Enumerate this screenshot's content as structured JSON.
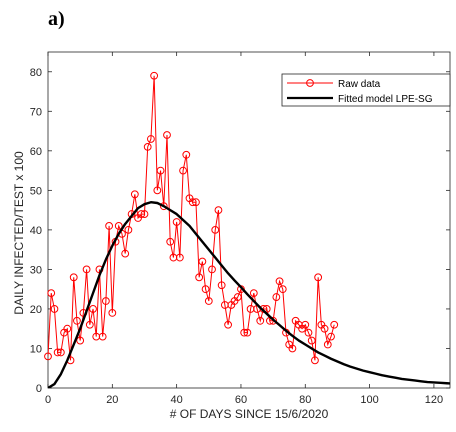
{
  "panel_label": "a)",
  "chart_data": {
    "type": "line",
    "xlabel": "# OF DAYS SINCE 15/6/2020",
    "ylabel": "DAILY INFECTED/TEST x 100",
    "xlim": [
      0,
      125
    ],
    "ylim": [
      0,
      85
    ],
    "xticks": [
      0,
      20,
      40,
      60,
      80,
      100,
      120
    ],
    "yticks": [
      0,
      10,
      20,
      30,
      40,
      50,
      60,
      70,
      80
    ],
    "legend_position": "top-right",
    "grid": false,
    "series": [
      {
        "name": "Raw data",
        "color": "#ff0000",
        "marker": "circle-open",
        "x": [
          0,
          1,
          2,
          3,
          4,
          5,
          6,
          7,
          8,
          9,
          10,
          11,
          12,
          13,
          14,
          15,
          16,
          17,
          18,
          19,
          20,
          21,
          22,
          23,
          24,
          25,
          26,
          27,
          28,
          29,
          30,
          31,
          32,
          33,
          34,
          35,
          36,
          37,
          38,
          39,
          40,
          41,
          42,
          43,
          44,
          45,
          46,
          47,
          48,
          49,
          50,
          51,
          52,
          53,
          54,
          55,
          56,
          57,
          58,
          59,
          60,
          61,
          62,
          63,
          64,
          65,
          66,
          67,
          68,
          69,
          70,
          71,
          72,
          73,
          74,
          75,
          76,
          77,
          78,
          79,
          80,
          81,
          82,
          83,
          84,
          85,
          86,
          87,
          88,
          89
        ],
        "y": [
          8,
          24,
          20,
          9,
          9,
          14,
          15,
          7,
          28,
          17,
          12,
          19,
          30,
          16,
          20,
          13,
          30,
          13,
          22,
          41,
          19,
          37,
          41,
          39,
          34,
          40,
          44,
          49,
          43,
          44,
          44,
          61,
          63,
          79,
          50,
          55,
          46,
          64,
          37,
          33,
          42,
          33,
          55,
          59,
          48,
          47,
          47,
          28,
          32,
          25,
          22,
          30,
          40,
          45,
          26,
          21,
          16,
          21,
          22,
          23,
          25,
          14,
          14,
          20,
          24,
          20,
          17,
          20,
          20,
          17,
          17,
          23,
          27,
          25,
          14,
          11,
          10,
          17,
          16,
          15,
          16,
          14,
          12,
          7,
          28,
          16,
          15,
          11,
          13,
          16
        ]
      },
      {
        "name": "Fitted model LPE-SG",
        "color": "#000000",
        "x": [
          0,
          2,
          4,
          6,
          8,
          10,
          12,
          14,
          16,
          18,
          20,
          22,
          24,
          26,
          28,
          30,
          32,
          34,
          36,
          38,
          40,
          42,
          44,
          46,
          48,
          50,
          52,
          54,
          56,
          58,
          60,
          62,
          64,
          66,
          68,
          70,
          72,
          74,
          76,
          78,
          80,
          82,
          84,
          86,
          88,
          90,
          92,
          94,
          96,
          98,
          100,
          102,
          104,
          106,
          108,
          110,
          112,
          114,
          116,
          118,
          120,
          122,
          124,
          125
        ],
        "y": [
          0,
          1,
          3.5,
          7,
          11,
          15,
          19.5,
          24,
          28.5,
          32.5,
          36,
          39,
          41.5,
          43.5,
          45.5,
          46.5,
          47,
          46.8,
          46,
          45,
          44,
          42.5,
          41,
          39,
          37,
          35,
          33,
          31,
          29,
          27.2,
          25.5,
          23.7,
          22,
          20.3,
          18.8,
          17.3,
          15.9,
          14.5,
          13.2,
          12,
          11,
          10,
          9,
          8.2,
          7.4,
          6.7,
          6,
          5.4,
          4.9,
          4.4,
          4,
          3.6,
          3.2,
          2.9,
          2.6,
          2.3,
          2.1,
          1.9,
          1.7,
          1.5,
          1.4,
          1.3,
          1.2,
          1.15
        ]
      }
    ]
  }
}
